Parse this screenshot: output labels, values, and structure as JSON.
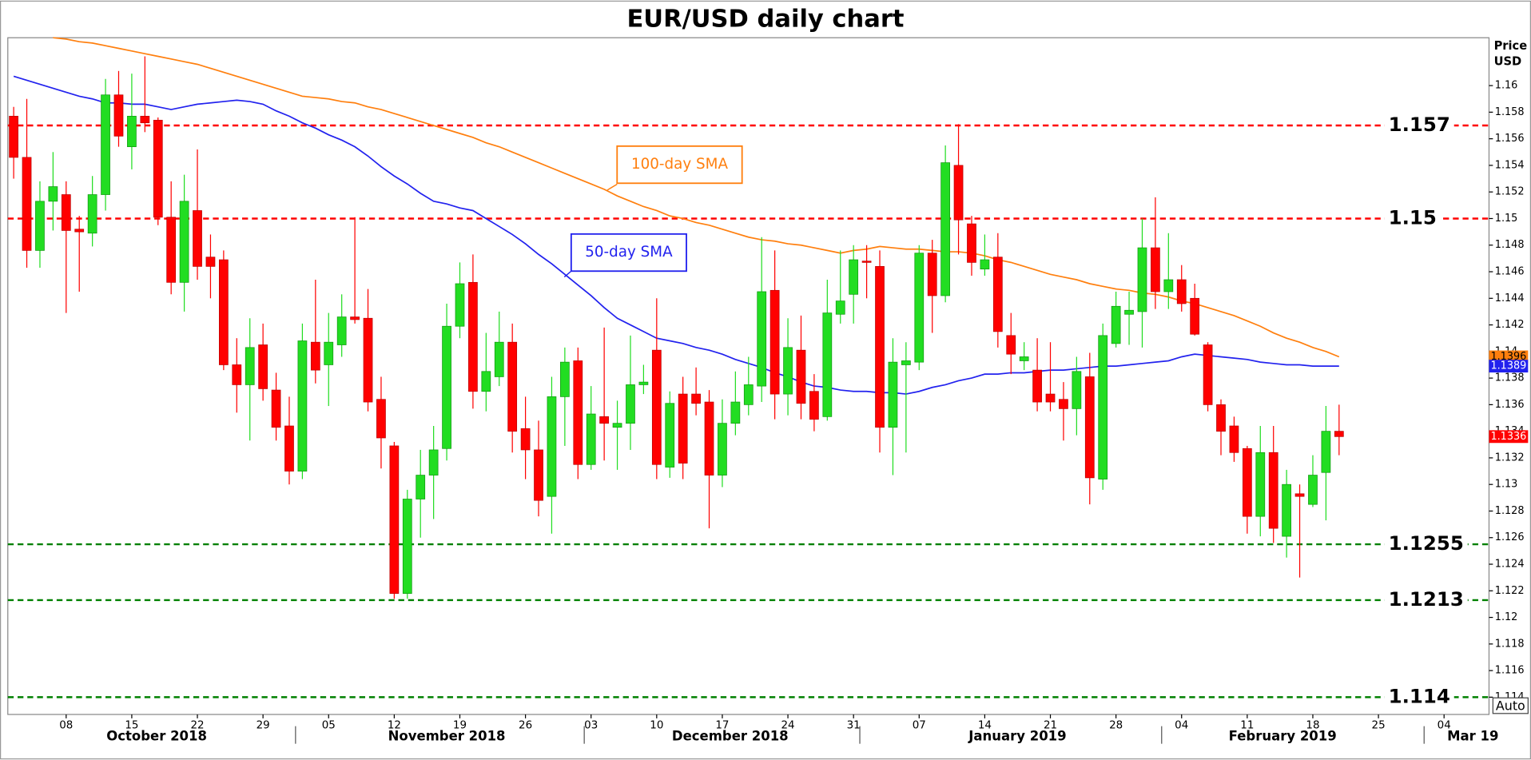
{
  "chart_data": {
    "type": "candlestick",
    "title": "EUR/USD daily chart",
    "ylabel": [
      "Price",
      "USD"
    ],
    "categories": [
      null,
      null,
      null,
      null,
      "08",
      null,
      null,
      null,
      null,
      "15",
      null,
      null,
      null,
      null,
      "22",
      null,
      null,
      null,
      null,
      "29",
      null,
      null,
      null,
      null,
      "05",
      null,
      null,
      null,
      null,
      "12",
      null,
      null,
      null,
      null,
      "19",
      null,
      null,
      null,
      null,
      "26",
      null,
      null,
      null,
      null,
      "03",
      null,
      null,
      null,
      null,
      "10",
      null,
      null,
      null,
      null,
      "17",
      null,
      null,
      null,
      null,
      "24",
      null,
      null,
      null,
      null,
      "31",
      null,
      null,
      null,
      null,
      "07",
      null,
      null,
      null,
      null,
      "14",
      null,
      null,
      null,
      null,
      "21",
      null,
      null,
      null,
      null,
      "28",
      null,
      null,
      null,
      null,
      "04",
      null,
      null,
      null,
      null,
      "11",
      null,
      null,
      null,
      null,
      "18",
      null,
      null,
      null,
      null,
      "25",
      null,
      null,
      null,
      null,
      "04",
      null,
      null,
      null
    ],
    "month_labels": [
      "October 2018",
      "November 2018",
      "December 2018",
      "January 2019",
      "February 2019",
      "Mar 19"
    ],
    "open": [
      1.1577,
      1.1546,
      1.1476,
      1.1513,
      1.1518,
      1.1492,
      1.1489,
      1.1518,
      1.1593,
      1.1554,
      1.1577,
      1.1574,
      1.1501,
      1.1452,
      1.1506,
      1.1471,
      1.1469,
      1.139,
      1.1375,
      1.1405,
      1.1371,
      1.1344,
      1.131,
      1.1407,
      1.139,
      1.1405,
      1.1426,
      1.1425,
      1.1364,
      1.1329,
      1.1218,
      1.1289,
      1.1307,
      1.1327,
      1.1419,
      1.1452,
      1.137,
      1.1381,
      1.1407,
      1.1342,
      1.1326,
      1.1291,
      1.1366,
      1.1393,
      1.1315,
      1.1351,
      1.1343,
      1.1346,
      1.1375,
      1.1401,
      1.1313,
      1.1368,
      1.1368,
      1.1362,
      1.1307,
      1.1346,
      1.136,
      1.1374,
      1.1446,
      1.1368,
      1.1401,
      1.137,
      1.1351,
      1.1428,
      1.1443,
      1.1468,
      1.1464,
      1.1343,
      1.139,
      1.1392,
      1.1474,
      1.1442,
      1.154,
      1.1496,
      1.1462,
      1.1471,
      1.1412,
      1.1393,
      1.1386,
      1.1368,
      1.1364,
      1.1357,
      1.1381,
      1.1304,
      1.1406,
      1.1428,
      1.143,
      1.1478,
      1.1445,
      1.1454,
      1.144,
      1.1405,
      1.136,
      1.1344,
      1.1327,
      1.1276,
      1.1324,
      1.1261,
      1.1293,
      1.1285,
      1.1309,
      1.134,
      null,
      null,
      null,
      null,
      null,
      null,
      null,
      null,
      null,
      null,
      null
    ],
    "high": [
      1.1584,
      1.159,
      1.1528,
      1.155,
      1.1528,
      1.1502,
      1.1532,
      1.1605,
      1.1611,
      1.1609,
      1.1622,
      1.1576,
      1.1528,
      1.1533,
      1.1552,
      1.1488,
      1.1476,
      1.141,
      1.1425,
      1.1421,
      1.1384,
      1.1366,
      1.1421,
      1.1454,
      1.1429,
      1.1443,
      1.1501,
      1.1447,
      1.1381,
      1.1332,
      1.1296,
      1.1326,
      1.1344,
      1.1436,
      1.1467,
      1.1473,
      1.1414,
      1.143,
      1.1421,
      1.1366,
      1.1348,
      1.1381,
      1.1403,
      1.1403,
      1.1374,
      1.1418,
      1.1363,
      1.1412,
      1.139,
      1.144,
      1.137,
      1.1381,
      1.1388,
      1.1371,
      1.1364,
      1.1385,
      1.1396,
      1.1486,
      1.1476,
      1.1425,
      1.1427,
      1.1383,
      1.1454,
      1.1476,
      1.148,
      1.148,
      1.1476,
      1.141,
      1.1407,
      1.148,
      1.1484,
      1.1555,
      1.1571,
      1.1502,
      1.1488,
      1.1489,
      1.1429,
      1.1407,
      1.141,
      1.1407,
      1.1377,
      1.1396,
      1.1399,
      1.1421,
      1.1445,
      1.1445,
      1.15,
      1.1516,
      1.1489,
      1.1465,
      1.1451,
      1.1407,
      1.1364,
      1.1351,
      1.1329,
      1.1344,
      1.1344,
      1.1311,
      1.13,
      1.1322,
      1.1359,
      1.136,
      null,
      null,
      null,
      null,
      null,
      null,
      null,
      null,
      null,
      null,
      null
    ],
    "low": [
      1.153,
      1.1463,
      1.1463,
      1.1491,
      1.1429,
      1.1445,
      1.1479,
      1.1506,
      1.1554,
      1.1537,
      1.1565,
      1.1495,
      1.1443,
      1.143,
      1.1454,
      1.144,
      1.1386,
      1.1354,
      1.1333,
      1.1363,
      1.1333,
      1.13,
      1.1304,
      1.1376,
      1.1359,
      1.1396,
      1.1421,
      1.1355,
      1.1312,
      1.1214,
      1.1214,
      1.126,
      1.1274,
      1.1318,
      1.141,
      1.1357,
      1.1355,
      1.1374,
      1.1324,
      1.1304,
      1.1276,
      1.1263,
      1.1329,
      1.1304,
      1.1311,
      1.1318,
      1.1311,
      1.1326,
      1.1368,
      1.1304,
      1.1305,
      1.1304,
      1.1352,
      1.1267,
      1.1298,
      1.1337,
      1.1352,
      1.1362,
      1.1349,
      1.1352,
      1.1349,
      1.134,
      1.1348,
      1.1421,
      1.1421,
      1.144,
      1.1324,
      1.1307,
      1.1324,
      1.1386,
      1.1414,
      1.1437,
      1.1473,
      1.1457,
      1.1457,
      1.1403,
      1.1383,
      1.1386,
      1.1355,
      1.1355,
      1.1333,
      1.1337,
      1.1285,
      1.1296,
      1.1403,
      1.1405,
      1.1403,
      1.1432,
      1.1432,
      1.143,
      1.1412,
      1.1355,
      1.1322,
      1.1317,
      1.1263,
      1.1261,
      1.1256,
      1.1245,
      1.123,
      1.1283,
      1.1273,
      1.1322,
      null,
      null,
      null,
      null,
      null,
      null,
      null,
      null,
      null,
      null,
      null
    ],
    "close": [
      1.1546,
      1.1476,
      1.1513,
      1.1524,
      1.1491,
      1.149,
      1.1518,
      1.1593,
      1.1562,
      1.1577,
      1.1572,
      1.1501,
      1.1452,
      1.1513,
      1.1464,
      1.1464,
      1.139,
      1.1375,
      1.1403,
      1.1372,
      1.1343,
      1.131,
      1.1408,
      1.1386,
      1.1407,
      1.1426,
      1.1424,
      1.1362,
      1.1335,
      1.1218,
      1.1289,
      1.1307,
      1.1326,
      1.1419,
      1.1451,
      1.137,
      1.1385,
      1.1407,
      1.134,
      1.1326,
      1.1288,
      1.1366,
      1.1392,
      1.1315,
      1.1353,
      1.1346,
      1.1346,
      1.1375,
      1.1377,
      1.1315,
      1.1361,
      1.1316,
      1.1361,
      1.1307,
      1.1346,
      1.1362,
      1.1375,
      1.1445,
      1.1368,
      1.1403,
      1.1361,
      1.1349,
      1.1429,
      1.1438,
      1.1469,
      1.1467,
      1.1343,
      1.1392,
      1.1393,
      1.1474,
      1.1442,
      1.1542,
      1.1499,
      1.1467,
      1.1469,
      1.1415,
      1.1398,
      1.1396,
      1.1362,
      1.1362,
      1.1357,
      1.1385,
      1.1305,
      1.1412,
      1.1434,
      1.1431,
      1.1478,
      1.1445,
      1.1454,
      1.1436,
      1.1413,
      1.136,
      1.134,
      1.1324,
      1.1276,
      1.1324,
      1.1267,
      1.13,
      1.1291,
      1.1307,
      1.134,
      1.1336,
      null,
      null,
      null,
      null,
      null,
      null,
      null,
      null,
      null,
      null,
      null
    ],
    "up_color": "#22dd22",
    "down_color": "#ff0000",
    "series": [
      {
        "name": "50-day SMA",
        "color": "#2222ee",
        "values": [
          1.1607,
          1.1604,
          1.1601,
          1.1598,
          1.1595,
          1.1592,
          1.159,
          1.1587,
          1.1587,
          1.1586,
          1.1586,
          1.1584,
          1.1582,
          1.1584,
          1.1586,
          1.1587,
          1.1588,
          1.1589,
          1.1588,
          1.1586,
          1.1581,
          1.1577,
          1.1572,
          1.1568,
          1.1563,
          1.1559,
          1.1554,
          1.1547,
          1.1539,
          1.1532,
          1.1526,
          1.1519,
          1.1513,
          1.1511,
          1.1508,
          1.1506,
          1.15,
          1.1494,
          1.1488,
          1.1481,
          1.1473,
          1.1466,
          1.1458,
          1.145,
          1.1442,
          1.1433,
          1.1425,
          1.142,
          1.1415,
          1.141,
          1.1408,
          1.1406,
          1.1403,
          1.1401,
          1.1398,
          1.1394,
          1.1391,
          1.1388,
          1.1384,
          1.1381,
          1.1377,
          1.1374,
          1.1373,
          1.1371,
          1.137,
          1.137,
          1.1369,
          1.1369,
          1.1368,
          1.137,
          1.1373,
          1.1375,
          1.1378,
          1.138,
          1.1383,
          1.1383,
          1.1384,
          1.1384,
          1.1385,
          1.1386,
          1.1386,
          1.1387,
          1.1388,
          1.1389,
          1.1389,
          1.139,
          1.1391,
          1.1392,
          1.1393,
          1.1396,
          1.1398,
          1.1397,
          1.1396,
          1.1395,
          1.1394,
          1.1392,
          1.1391,
          1.139,
          1.139,
          1.1389,
          1.1389,
          1.1389,
          null,
          null,
          null,
          null,
          null,
          null,
          null,
          null,
          null,
          null,
          null
        ]
      },
      {
        "name": "100-day SMA",
        "color": "#ff7f0e",
        "values": [
          null,
          null,
          null,
          1.1636,
          1.1635,
          1.1633,
          1.1632,
          1.163,
          1.1628,
          1.1626,
          1.1624,
          1.1622,
          1.162,
          1.1618,
          1.1616,
          1.1613,
          1.161,
          1.1607,
          1.1604,
          1.1601,
          1.1598,
          1.1595,
          1.1592,
          1.1591,
          1.159,
          1.1588,
          1.1587,
          1.1584,
          1.1582,
          1.1579,
          1.1576,
          1.1573,
          1.157,
          1.1567,
          1.1564,
          1.1561,
          1.1557,
          1.1554,
          1.155,
          1.1546,
          1.1542,
          1.1538,
          1.1534,
          1.153,
          1.1526,
          1.1522,
          1.1517,
          1.1513,
          1.1509,
          1.1506,
          1.1502,
          1.15,
          1.1497,
          1.1495,
          1.1492,
          1.1489,
          1.1486,
          1.1484,
          1.1483,
          1.1481,
          1.148,
          1.1478,
          1.1476,
          1.1474,
          1.1476,
          1.1477,
          1.1479,
          1.1478,
          1.1477,
          1.1477,
          1.1476,
          1.1475,
          1.1475,
          1.1474,
          1.1472,
          1.1469,
          1.1467,
          1.1464,
          1.1461,
          1.1458,
          1.1456,
          1.1454,
          1.1451,
          1.1449,
          1.1447,
          1.1446,
          1.1444,
          1.1443,
          1.1441,
          1.1438,
          1.1436,
          1.1433,
          1.143,
          1.1427,
          1.1423,
          1.1419,
          1.1414,
          1.141,
          1.1407,
          1.1403,
          1.14,
          1.1396,
          null,
          null,
          null,
          null,
          null,
          null,
          null,
          null,
          null,
          null,
          null
        ]
      }
    ],
    "levels": [
      {
        "value": 1.157,
        "color": "#ff0000"
      },
      {
        "value": 1.15,
        "color": "#ff0000"
      },
      {
        "value": 1.1255,
        "color": "#008000"
      },
      {
        "value": 1.1213,
        "color": "#008000"
      },
      {
        "value": 1.114,
        "color": "#008000"
      }
    ],
    "ylim": [
      1.1127,
      1.1636
    ],
    "yticks": [
      1.114,
      1.116,
      1.118,
      1.12,
      1.122,
      1.124,
      1.126,
      1.128,
      1.13,
      1.132,
      1.134,
      1.136,
      1.138,
      1.14,
      1.142,
      1.144,
      1.146,
      1.148,
      1.15,
      1.152,
      1.154,
      1.156,
      1.158,
      1.16
    ],
    "grid": false
  },
  "controls": {
    "auto": "Auto"
  }
}
